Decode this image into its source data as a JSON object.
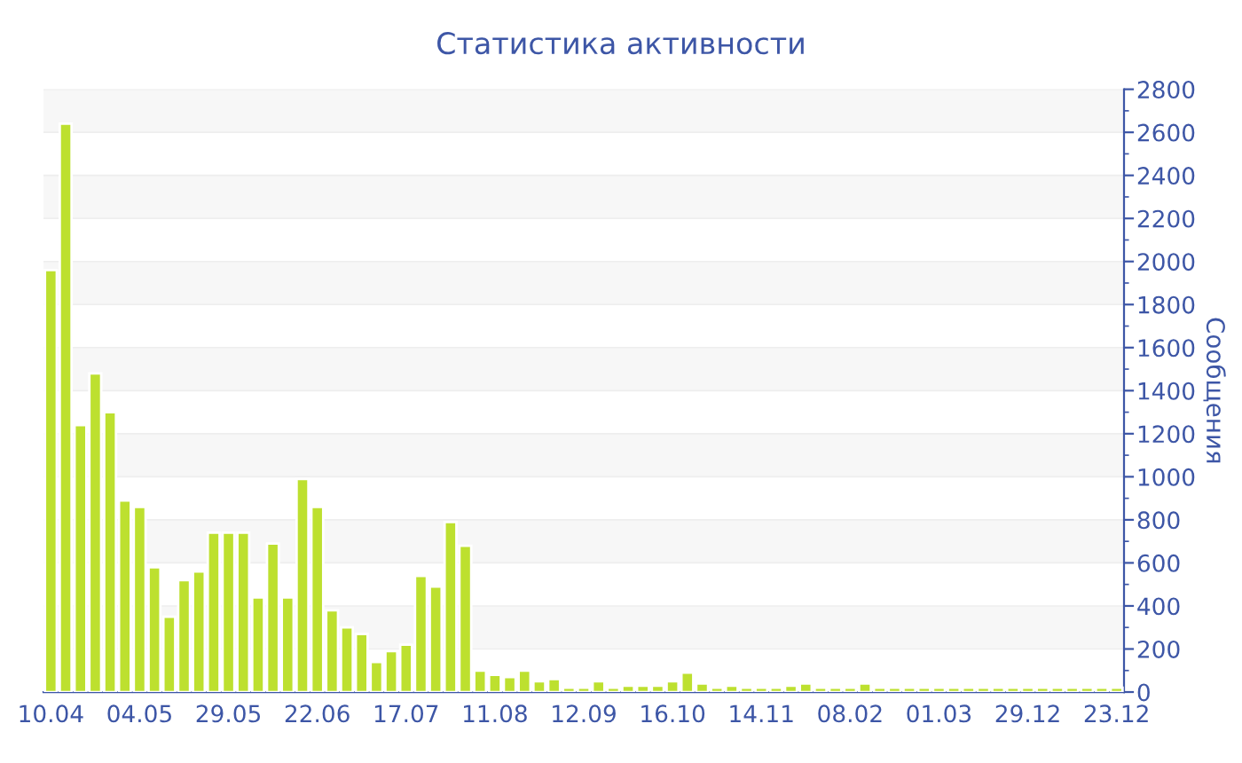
{
  "chart_data": {
    "type": "bar",
    "title": "Статистика активности",
    "ylabel": "Сообщения",
    "categories": [
      "10.04",
      null,
      null,
      null,
      null,
      null,
      "04.05",
      null,
      null,
      null,
      null,
      null,
      "29.05",
      null,
      null,
      null,
      null,
      null,
      "22.06",
      null,
      null,
      null,
      null,
      null,
      "17.07",
      null,
      null,
      null,
      null,
      null,
      "11.08",
      null,
      null,
      null,
      null,
      null,
      "12.09",
      null,
      null,
      null,
      null,
      null,
      "16.10",
      null,
      null,
      null,
      null,
      null,
      "14.11",
      null,
      null,
      null,
      null,
      null,
      "08.02",
      null,
      null,
      null,
      null,
      null,
      "01.03",
      null,
      null,
      null,
      null,
      null,
      "29.12",
      null,
      null,
      null,
      null,
      null,
      "23.12"
    ],
    "values": [
      1960,
      2640,
      1240,
      1480,
      1300,
      890,
      860,
      580,
      350,
      520,
      560,
      740,
      740,
      740,
      440,
      690,
      440,
      990,
      860,
      380,
      300,
      270,
      140,
      190,
      220,
      540,
      490,
      790,
      680,
      100,
      80,
      70,
      100,
      50,
      60,
      20,
      20,
      50,
      20,
      30,
      30,
      30,
      50,
      90,
      40,
      20,
      30,
      20,
      20,
      20,
      30,
      40,
      20,
      20,
      20,
      40,
      20,
      20,
      20,
      20,
      20,
      20,
      20,
      20,
      20,
      20,
      20,
      20,
      20,
      20,
      20,
      20,
      20
    ],
    "color": "#bde02f",
    "ylim": [
      0,
      2800
    ],
    "yticks": [
      0,
      200,
      400,
      600,
      800,
      1000,
      1200,
      1400,
      1600,
      1800,
      2000,
      2200,
      2400,
      2600,
      2800
    ],
    "grid": "y"
  }
}
